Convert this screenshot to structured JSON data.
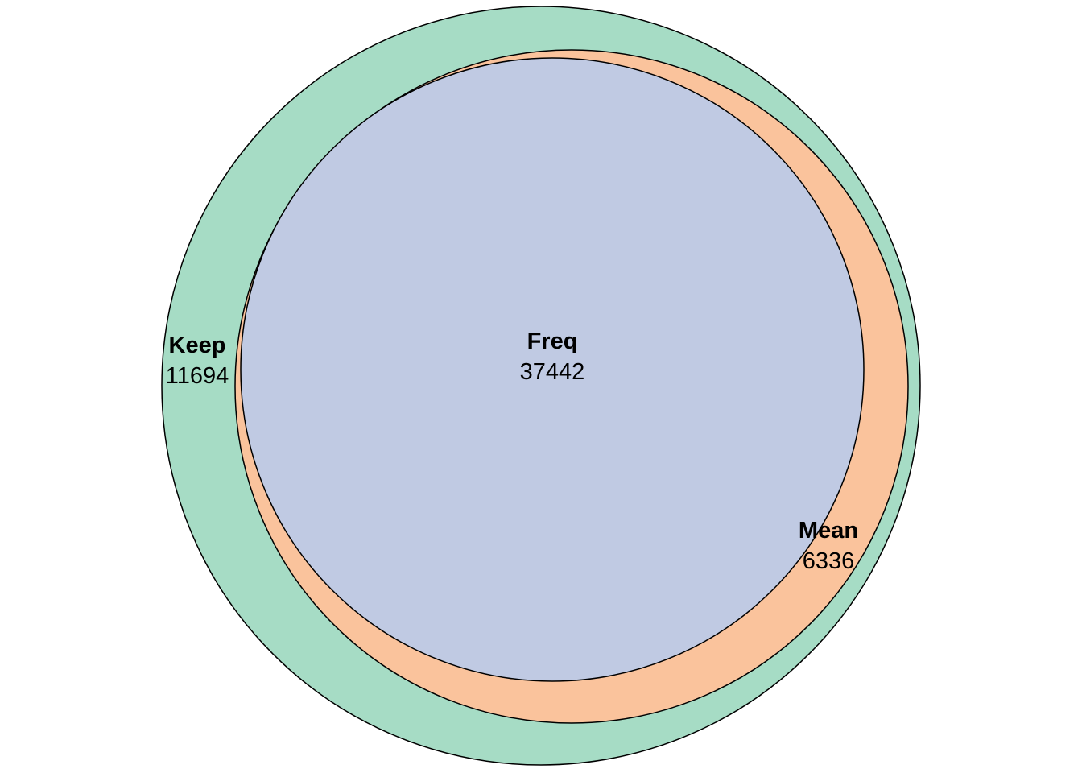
{
  "diagram": {
    "type": "euler",
    "sets": [
      {
        "name": "Keep",
        "count": "11694",
        "fill": "#a6dcc5"
      },
      {
        "name": "Mean",
        "count": "6336",
        "fill": "#fac39c"
      },
      {
        "name": "Freq",
        "count": "37442",
        "fill": "#c0cae3"
      }
    ],
    "outline_color": "#000000"
  }
}
